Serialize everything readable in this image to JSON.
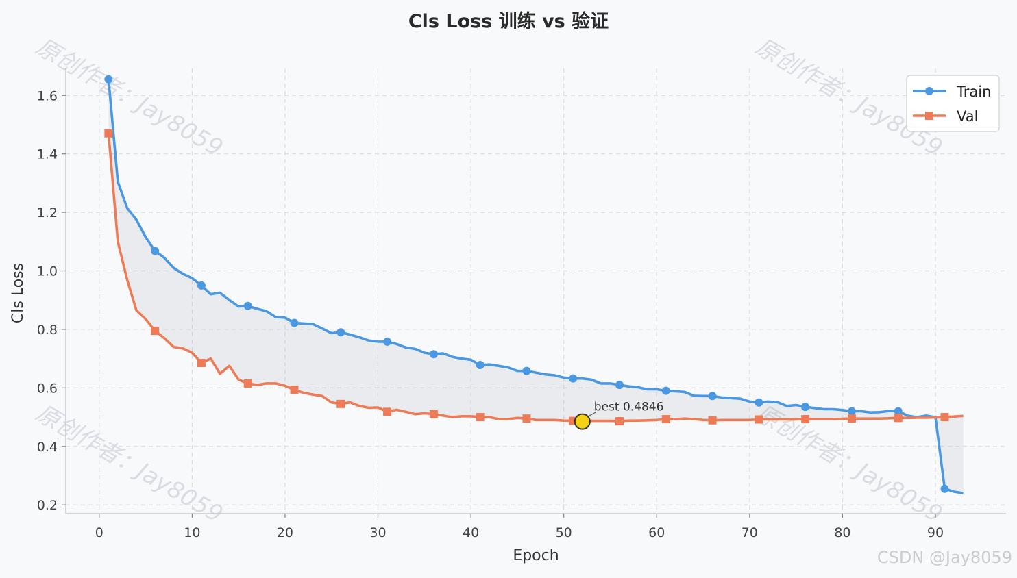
{
  "chart_data": {
    "type": "line",
    "title": "Cls Loss 训练 vs 验证",
    "xlabel": "Epoch",
    "ylabel": "Cls Loss",
    "xlim": [
      -3.6,
      97.6
    ],
    "ylim": [
      0.17,
      1.72
    ],
    "xticks": [
      0,
      10,
      20,
      30,
      40,
      50,
      60,
      70,
      80,
      90
    ],
    "yticks": [
      0.2,
      0.4,
      0.6,
      0.8,
      1.0,
      1.2,
      1.4,
      1.6
    ],
    "ytick_labels": [
      "0.2",
      "0.4",
      "0.6",
      "0.8",
      "1.0",
      "1.2",
      "1.4",
      "1.6"
    ],
    "grid": true,
    "legend_position": "top-right",
    "fill_between": true,
    "marker_every": 5,
    "x": [
      1,
      2,
      3,
      4,
      5,
      6,
      7,
      8,
      9,
      10,
      11,
      12,
      13,
      14,
      15,
      16,
      17,
      18,
      19,
      20,
      21,
      22,
      23,
      24,
      25,
      26,
      27,
      28,
      29,
      30,
      31,
      32,
      33,
      34,
      35,
      36,
      37,
      38,
      39,
      40,
      41,
      42,
      43,
      44,
      45,
      46,
      47,
      48,
      49,
      50,
      51,
      52,
      53,
      54,
      55,
      56,
      57,
      58,
      59,
      60,
      61,
      62,
      63,
      64,
      65,
      66,
      67,
      68,
      69,
      70,
      71,
      72,
      73,
      74,
      75,
      76,
      77,
      78,
      79,
      80,
      81,
      82,
      83,
      84,
      85,
      86,
      87,
      88,
      89,
      90,
      91,
      92,
      93
    ],
    "series": [
      {
        "name": "Train",
        "color": "#4a98e2",
        "marker": "circle",
        "values": [
          1.655,
          1.305,
          1.215,
          1.175,
          1.115,
          1.068,
          1.045,
          1.01,
          0.99,
          0.975,
          0.95,
          0.92,
          0.925,
          0.9,
          0.878,
          0.88,
          0.87,
          0.862,
          0.842,
          0.84,
          0.822,
          0.82,
          0.818,
          0.803,
          0.787,
          0.79,
          0.782,
          0.773,
          0.762,
          0.758,
          0.758,
          0.75,
          0.738,
          0.733,
          0.72,
          0.715,
          0.718,
          0.706,
          0.7,
          0.696,
          0.678,
          0.68,
          0.675,
          0.67,
          0.658,
          0.658,
          0.652,
          0.646,
          0.643,
          0.635,
          0.632,
          0.632,
          0.628,
          0.615,
          0.615,
          0.61,
          0.605,
          0.602,
          0.595,
          0.595,
          0.59,
          0.588,
          0.586,
          0.573,
          0.572,
          0.572,
          0.567,
          0.565,
          0.563,
          0.553,
          0.55,
          0.553,
          0.551,
          0.538,
          0.541,
          0.535,
          0.531,
          0.527,
          0.527,
          0.524,
          0.52,
          0.52,
          0.516,
          0.517,
          0.521,
          0.52,
          0.505,
          0.5,
          0.505,
          0.5,
          0.255,
          0.245,
          0.24
        ]
      },
      {
        "name": "Val",
        "color": "#ee7b57",
        "marker": "square",
        "values": [
          1.47,
          1.1,
          0.97,
          0.865,
          0.835,
          0.795,
          0.77,
          0.74,
          0.735,
          0.72,
          0.685,
          0.7,
          0.648,
          0.675,
          0.628,
          0.615,
          0.61,
          0.615,
          0.615,
          0.607,
          0.593,
          0.583,
          0.577,
          0.572,
          0.55,
          0.545,
          0.55,
          0.538,
          0.532,
          0.533,
          0.518,
          0.525,
          0.518,
          0.51,
          0.513,
          0.51,
          0.505,
          0.5,
          0.503,
          0.503,
          0.5,
          0.5,
          0.493,
          0.493,
          0.497,
          0.495,
          0.49,
          0.49,
          0.49,
          0.488,
          0.487,
          0.4846,
          0.487,
          0.487,
          0.487,
          0.486,
          0.488,
          0.488,
          0.489,
          0.49,
          0.493,
          0.493,
          0.495,
          0.493,
          0.49,
          0.489,
          0.49,
          0.49,
          0.49,
          0.49,
          0.492,
          0.492,
          0.492,
          0.492,
          0.492,
          0.493,
          0.493,
          0.493,
          0.493,
          0.494,
          0.495,
          0.495,
          0.495,
          0.495,
          0.496,
          0.497,
          0.497,
          0.498,
          0.498,
          0.499,
          0.5,
          0.502,
          0.504
        ]
      }
    ],
    "best": {
      "x": 52,
      "y": 0.4846,
      "label": "best 0.4846",
      "color": "#f5d113"
    }
  },
  "watermark": {
    "text": "原创作者：Jay8059"
  },
  "credit": {
    "text": "CSDN @Jay8059"
  }
}
